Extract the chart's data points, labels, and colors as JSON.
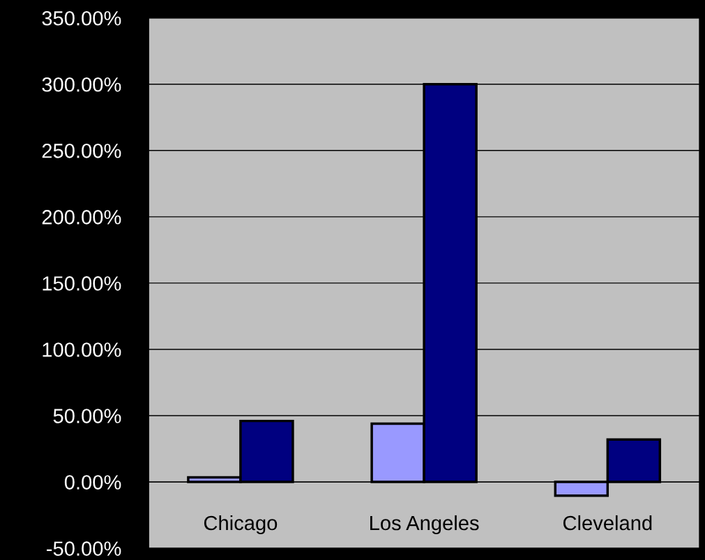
{
  "chart_data": {
    "type": "bar",
    "categories": [
      "Chicago",
      "Los Angeles",
      "Cleveland"
    ],
    "series": [
      {
        "color": "#9999ff",
        "values": [
          3.5,
          44,
          -10.4
        ]
      },
      {
        "color": "#000080",
        "values": [
          46,
          300,
          32
        ]
      }
    ],
    "ylim": [
      -50,
      350
    ],
    "yticks": [
      {
        "value": -50,
        "label": "-50.00%"
      },
      {
        "value": 0,
        "label": "0.00%"
      },
      {
        "value": 50,
        "label": "50.00%"
      },
      {
        "value": 100,
        "label": "100.00%"
      },
      {
        "value": 150,
        "label": "150.00%"
      },
      {
        "value": 200,
        "label": "200.00%"
      },
      {
        "value": 250,
        "label": "250.00%"
      },
      {
        "value": 300,
        "label": "300.00%"
      },
      {
        "value": 350,
        "label": "350.00%"
      }
    ],
    "grid": "y",
    "legend": false
  }
}
